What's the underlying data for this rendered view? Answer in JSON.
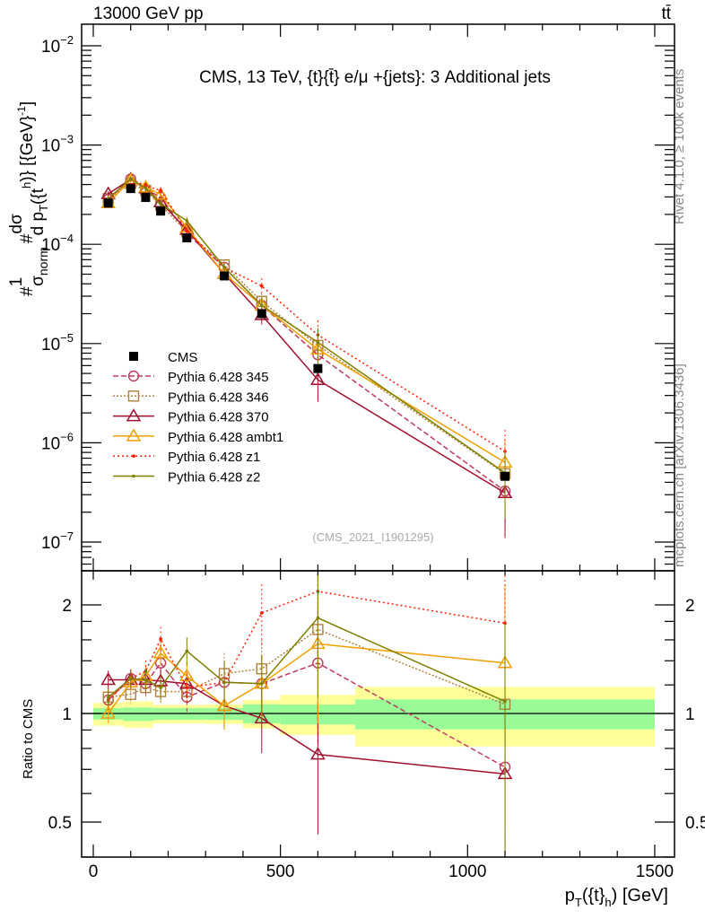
{
  "header": {
    "left": "13000 GeV pp",
    "right": "tt̄"
  },
  "side_labels": {
    "rivet": "Rivet 4.1.0, ≥ 100k events",
    "mcplots": "mcplots.cern.ch [arXiv:1306.3436]"
  },
  "chart_data": {
    "type": "line",
    "title": "CMS, 13 TeV, {t}{t̄} e/μ +{jets}: 3 Additional jets",
    "watermark": "(CMS_2021_I1901295)",
    "xlabel": "p_T({t}_h) [GeV]",
    "xlabel_parts": {
      "p": "p",
      "sub": "T",
      "mid": "({t}",
      "sub2": "h",
      "end": ") [GeV]"
    },
    "ylabel": "#1/σ_norm #dσ/d p_T({t}_h)} [{GeV}^-1]",
    "ylabel_parts": {
      "hash1": "#",
      "one": "1",
      "sigma": "σ",
      "norm": "norm",
      "hash2": "#",
      "dsigma": "dσ",
      "dp": "d p",
      "T": "T",
      "t": "({t",
      "h": "h",
      "unit": ")} [{GeV}",
      "exp": "-1",
      "close": "]"
    },
    "ratio_ylabel": "Ratio to CMS",
    "xlim": [
      -40,
      1550
    ],
    "ylim": [
      5e-08,
      0.013
    ],
    "ratio_ylim": [
      0.4,
      2.49
    ],
    "yscale": "log",
    "x_ticks": [
      "0",
      "500",
      "1000",
      "1500"
    ],
    "x_tick_values": [
      0,
      500,
      1000,
      1500
    ],
    "y_ticks": [
      {
        "base": "10",
        "exp": "−2",
        "v": 0.01
      },
      {
        "base": "10",
        "exp": "−3",
        "v": 0.001
      },
      {
        "base": "10",
        "exp": "−4",
        "v": 0.0001
      },
      {
        "base": "10",
        "exp": "−5",
        "v": 1e-05
      },
      {
        "base": "10",
        "exp": "−6",
        "v": 1e-06
      },
      {
        "base": "10",
        "exp": "−7",
        "v": 1e-07
      }
    ],
    "ratio_ticks": [
      {
        "label": "2",
        "v": 2
      },
      {
        "label": "1",
        "v": 1
      },
      {
        "label": "0.5",
        "v": 0.5
      }
    ],
    "x": [
      40,
      100,
      140,
      180,
      250,
      350,
      450,
      600,
      1100
    ],
    "bin_edges": [
      0,
      80,
      120,
      160,
      200,
      300,
      400,
      500,
      700,
      1500
    ],
    "data": {
      "name": "CMS",
      "values": [
        0.00026,
        0.000364,
        0.000296,
        0.000216,
        0.000116,
        4.8e-05,
        2e-05,
        5.6e-06,
        4.6e-07
      ],
      "stat_band": [
        [
          0.962,
          1.035
        ],
        [
          0.953,
          1.039
        ],
        [
          0.953,
          1.039
        ],
        [
          0.96,
          1.035
        ],
        [
          0.96,
          1.035
        ],
        [
          0.96,
          1.035
        ],
        [
          0.94,
          1.06
        ],
        [
          0.932,
          1.059
        ],
        [
          0.904,
          1.094
        ]
      ],
      "total_band": [
        [
          0.925,
          1.07
        ],
        [
          0.912,
          1.08
        ],
        [
          0.912,
          1.08
        ],
        [
          0.939,
          1.057
        ],
        [
          0.939,
          1.057
        ],
        [
          0.935,
          1.06
        ],
        [
          0.91,
          1.09
        ],
        [
          0.872,
          1.126
        ],
        [
          0.81,
          1.185
        ]
      ]
    },
    "series": [
      {
        "name": "Pythia 6.428 345",
        "color": "#c0395e",
        "dash": "6,3",
        "marker": "circle",
        "ratio": [
          1.09,
          1.25,
          1.21,
          1.38,
          1.11,
          1.22,
          1.21,
          1.38,
          0.71
        ]
      },
      {
        "name": "Pythia 6.428 346",
        "color": "#b0823c",
        "dash": "2,2",
        "marker": "square",
        "ratio": [
          1.11,
          1.13,
          1.18,
          1.15,
          1.15,
          1.29,
          1.33,
          1.71,
          1.06
        ]
      },
      {
        "name": "Pythia 6.428 370",
        "color": "#a0102e",
        "dash": "",
        "marker": "triangle",
        "ratio": [
          1.24,
          1.24,
          1.24,
          1.23,
          1.21,
          1.05,
          0.97,
          0.77,
          0.68
        ]
      },
      {
        "name": "Pythia 6.428 ambt1",
        "color": "#f0a000",
        "dash": "",
        "marker": "triangle",
        "ratio": [
          1.0,
          1.22,
          1.27,
          1.47,
          1.27,
          1.05,
          1.21,
          1.56,
          1.38
        ]
      },
      {
        "name": "Pythia 6.428 z1",
        "color": "#ff1a00",
        "dash": "2,3",
        "marker": "dot",
        "ratio": [
          1.09,
          1.25,
          1.31,
          1.61,
          1.18,
          1.22,
          1.9,
          2.18,
          1.78
        ]
      },
      {
        "name": "Pythia 6.428 z2",
        "color": "#7f7f00",
        "dash": "",
        "marker": "dot",
        "ratio": [
          1.11,
          1.25,
          1.24,
          1.18,
          1.49,
          1.22,
          1.21,
          1.84,
          1.08
        ]
      }
    ],
    "model_rel_err": [
      0.06,
      0.06,
      0.07,
      0.08,
      0.09,
      0.14,
      0.2,
      0.4,
      0.65
    ],
    "colors": {
      "stat": "#98fb98",
      "total": "#ffff99"
    }
  }
}
